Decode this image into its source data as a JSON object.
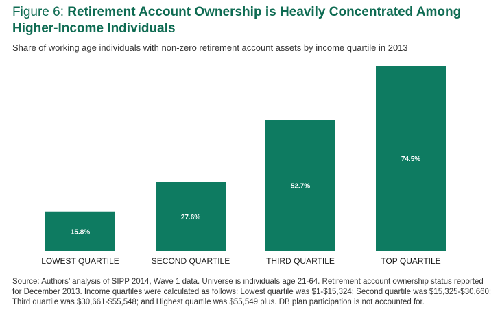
{
  "header": {
    "figure_label": "Figure 6: ",
    "title": "Retirement Account Ownership is Heavily Concentrated Among Higher-Income Individuals",
    "subtitle": "Share of working age individuals with non-zero retirement account assets by income quartile in 2013"
  },
  "footer": {
    "source": "Source: Authors’ analysis of SIPP 2014, Wave 1 data. Universe is individuals age 21-64. Retirement account ownership status reported for December 2013. Income quartiles were calculated as follows: Lowest quartile was $1-$15,324; Second quartile was $15,325-$30,660; Third quartile was $30,661-$55,548; and Highest quartile was $55,549 plus. DB plan participation is not accounted for."
  },
  "colors": {
    "bar": "#0e7b61",
    "baseline": "#6d6d6d",
    "title": "#0e6b52"
  },
  "chart_data": {
    "type": "bar",
    "categories": [
      "LOWEST QUARTILE",
      "SECOND QUARTILE",
      "THIRD QUARTILE",
      "TOP QUARTILE"
    ],
    "values": [
      15.8,
      27.6,
      52.7,
      74.5
    ],
    "data_labels": [
      "15.8%",
      "27.6%",
      "52.7%",
      "74.5%"
    ],
    "ylim": [
      0,
      74.5
    ],
    "grid": false,
    "legend": "none"
  }
}
